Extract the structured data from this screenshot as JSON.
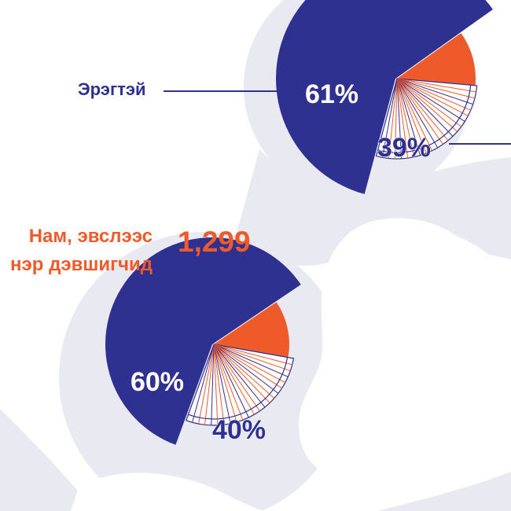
{
  "colors": {
    "background": "#ffffff",
    "blob": "#e9e9f1",
    "male": "#2f3190",
    "female": "#ef5a2a",
    "leader_line": "#2f3190",
    "hatch_fill": "#ffffff"
  },
  "labels": {
    "male": "Эрэгтэй",
    "candidates_line1": "Нам, эвслээс",
    "candidates_line2": "нэр дэвшигчид",
    "candidates_count": "1,299"
  },
  "chart_data": [
    {
      "type": "pie",
      "categories": [
        "Эрэгтэй",
        ""
      ],
      "values": [
        61,
        39
      ],
      "data_labels": [
        "61%",
        "39%"
      ],
      "colors": [
        "#2f3190",
        "#ef5a2a"
      ]
    },
    {
      "type": "pie",
      "title": "Нам, эвслээс нэр дэвшигчид",
      "subtitle": "1,299",
      "categories": [
        "",
        ""
      ],
      "values": [
        60,
        40
      ],
      "data_labels": [
        "60%",
        "40%"
      ],
      "colors": [
        "#2f3190",
        "#ef5a2a"
      ]
    }
  ]
}
